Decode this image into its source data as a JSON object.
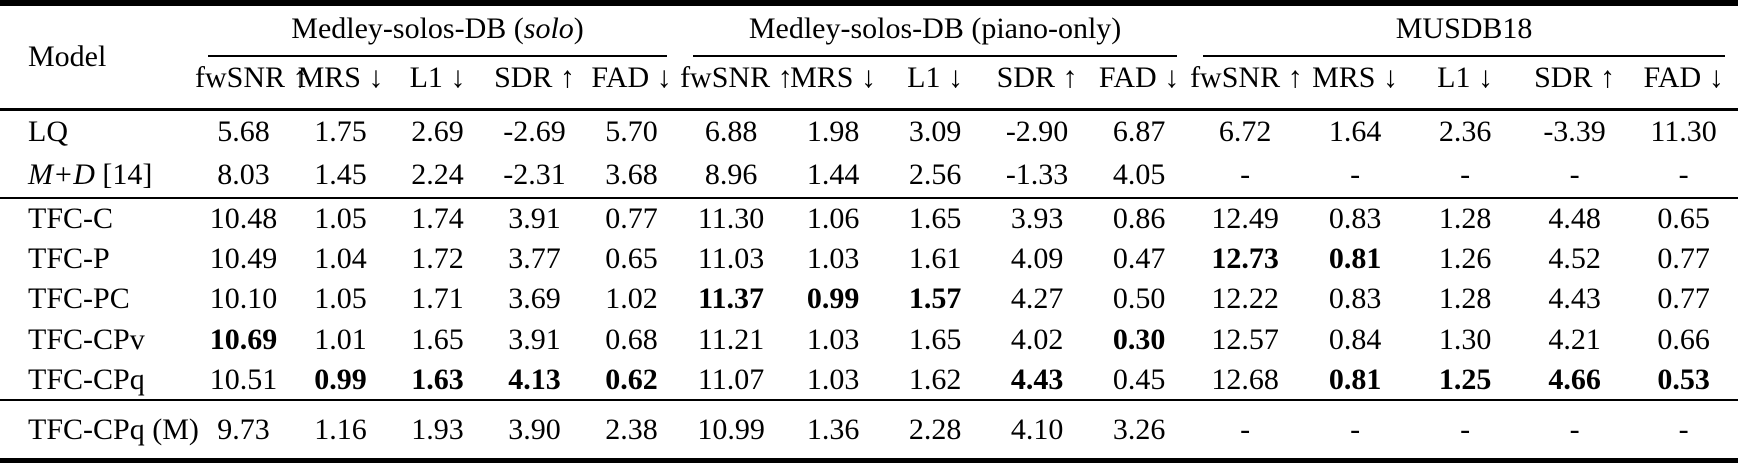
{
  "table": {
    "model_header": "Model",
    "groups": [
      {
        "prefix": "Medley-solos-DB (",
        "italic": "solo",
        "suffix": ")"
      },
      {
        "prefix": "Medley-solos-DB (piano-only)",
        "italic": "",
        "suffix": ""
      },
      {
        "prefix": "MUSDB18",
        "italic": "",
        "suffix": ""
      }
    ],
    "columns": [
      "fwSNR ↑",
      "MRS ↓",
      "L1 ↓",
      "SDR ↑",
      "FAD ↓",
      "fwSNR ↑",
      "MRS ↓",
      "L1 ↓",
      "SDR ↑",
      "FAD ↓",
      "fwSNR ↑",
      "MRS ↓",
      "L1 ↓",
      "SDR ↑",
      "FAD ↓"
    ],
    "sections": [
      {
        "rows": [
          {
            "model_italic": "",
            "model": "LQ",
            "values": [
              "5.68",
              "1.75",
              "2.69",
              "-2.69",
              "5.70",
              "6.88",
              "1.98",
              "3.09",
              "-2.90",
              "6.87",
              "6.72",
              "1.64",
              "2.36",
              "-3.39",
              "11.30"
            ],
            "bold": []
          },
          {
            "model_italic": "M+D",
            "model": " [14]",
            "values": [
              "8.03",
              "1.45",
              "2.24",
              "-2.31",
              "3.68",
              "8.96",
              "1.44",
              "2.56",
              "-1.33",
              "4.05",
              "-",
              "-",
              "-",
              "-",
              "-"
            ],
            "bold": []
          }
        ]
      },
      {
        "rows": [
          {
            "model_italic": "",
            "model": "TFC-C",
            "values": [
              "10.48",
              "1.05",
              "1.74",
              "3.91",
              "0.77",
              "11.30",
              "1.06",
              "1.65",
              "3.93",
              "0.86",
              "12.49",
              "0.83",
              "1.28",
              "4.48",
              "0.65"
            ],
            "bold": []
          },
          {
            "model_italic": "",
            "model": "TFC-P",
            "values": [
              "10.49",
              "1.04",
              "1.72",
              "3.77",
              "0.65",
              "11.03",
              "1.03",
              "1.61",
              "4.09",
              "0.47",
              "12.73",
              "0.81",
              "1.26",
              "4.52",
              "0.77"
            ],
            "bold": [
              10,
              11
            ]
          },
          {
            "model_italic": "",
            "model": "TFC-PC",
            "values": [
              "10.10",
              "1.05",
              "1.71",
              "3.69",
              "1.02",
              "11.37",
              "0.99",
              "1.57",
              "4.27",
              "0.50",
              "12.22",
              "0.83",
              "1.28",
              "4.43",
              "0.77"
            ],
            "bold": [
              5,
              6,
              7
            ]
          },
          {
            "model_italic": "",
            "model": "TFC-CPv",
            "values": [
              "10.69",
              "1.01",
              "1.65",
              "3.91",
              "0.68",
              "11.21",
              "1.03",
              "1.65",
              "4.02",
              "0.30",
              "12.57",
              "0.84",
              "1.30",
              "4.21",
              "0.66"
            ],
            "bold": [
              0,
              9
            ]
          },
          {
            "model_italic": "",
            "model": "TFC-CPq",
            "values": [
              "10.51",
              "0.99",
              "1.63",
              "4.13",
              "0.62",
              "11.07",
              "1.03",
              "1.62",
              "4.43",
              "0.45",
              "12.68",
              "0.81",
              "1.25",
              "4.66",
              "0.53"
            ],
            "bold": [
              1,
              2,
              3,
              4,
              8,
              11,
              12,
              13,
              14
            ]
          }
        ]
      },
      {
        "rows": [
          {
            "model_italic": "",
            "model": "TFC-CPq (M)",
            "values": [
              "9.73",
              "1.16",
              "1.93",
              "3.90",
              "2.38",
              "10.99",
              "1.36",
              "2.28",
              "4.10",
              "3.26",
              "-",
              "-",
              "-",
              "-",
              "-"
            ],
            "bold": []
          }
        ]
      }
    ]
  }
}
